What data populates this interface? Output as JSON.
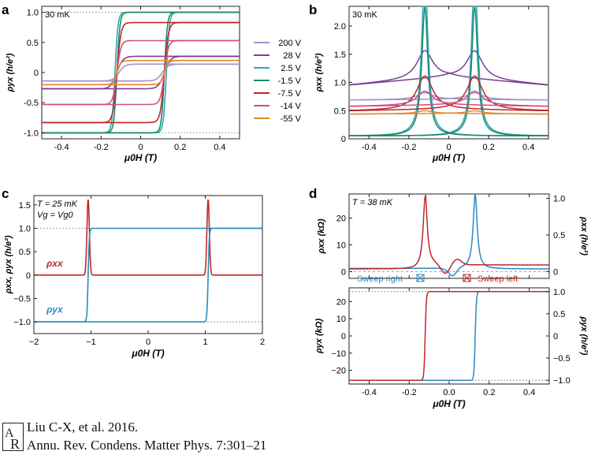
{
  "chart_data": [
    {
      "panel": "a",
      "type": "line",
      "annotation": "30 mK",
      "xlabel": "μ0H (T)",
      "ylabel": "ρyx (h/e²)",
      "xlim": [
        -0.5,
        0.5
      ],
      "ylim": [
        -1.1,
        1.1
      ],
      "xticks": [
        -0.4,
        -0.2,
        0,
        0.2,
        0.4
      ],
      "xtick_labels": [
        "-0.4",
        "-0.2",
        "0",
        "0.2",
        "0.4"
      ],
      "yticks": [
        -1.0,
        -0.5,
        0,
        0.5,
        1.0
      ],
      "ytick_labels": [
        "-1.0",
        "-0.5",
        "0",
        "0.5",
        "1.0"
      ],
      "reference_lines": [
        1.0,
        -1.0
      ],
      "legend_position": "right",
      "series": [
        {
          "name": "200 V",
          "color": "#9e94cc",
          "saturation": 0.14,
          "coercive_field": 0.11,
          "width": 0.03
        },
        {
          "name": "28 V",
          "color": "#7b3f96",
          "saturation": 0.27,
          "coercive_field": 0.12,
          "width": 0.03
        },
        {
          "name": "2.5 V",
          "color": "#2fa7b5",
          "saturation": 1.0,
          "coercive_field": 0.13,
          "width": 0.015
        },
        {
          "name": "-1.5 V",
          "color": "#1a8a6a",
          "saturation": 1.0,
          "coercive_field": 0.12,
          "width": 0.015
        },
        {
          "name": "-7.5 V",
          "color": "#c0282a",
          "saturation": 0.83,
          "coercive_field": 0.12,
          "width": 0.02
        },
        {
          "name": "-14 V",
          "color": "#cf4f86",
          "saturation": 0.53,
          "coercive_field": 0.12,
          "width": 0.02
        },
        {
          "name": "-55 V",
          "color": "#e8872c",
          "saturation": 0.2,
          "coercive_field": 0.12,
          "width": 0.02
        }
      ]
    },
    {
      "panel": "b",
      "type": "line",
      "annotation": "30 mK",
      "xlabel": "μ0H (T)",
      "ylabel": "ρxx (h/e²)",
      "xlim": [
        -0.5,
        0.5
      ],
      "ylim": [
        0,
        2.35
      ],
      "xticks": [
        -0.4,
        -0.2,
        0,
        0.2,
        0.4
      ],
      "xtick_labels": [
        "-0.4",
        "-0.2",
        "0",
        "0.2",
        "0.4"
      ],
      "yticks": [
        0,
        0.5,
        1.0,
        1.5,
        2.0
      ],
      "ytick_labels": [
        "0",
        "0.5",
        "1.0",
        "1.5",
        "2.0"
      ],
      "series": [
        {
          "name": "200 V",
          "color": "#9e94cc",
          "base": 0.7,
          "slope": 0.05,
          "peak": 0.12
        },
        {
          "name": "28 V",
          "color": "#7b3f96",
          "base": 1.1,
          "slope": 0.6,
          "peak": 0.5
        },
        {
          "name": "2.5 V",
          "color": "#2fa7b5",
          "base": 0.05,
          "slope": 0,
          "peak": 3.0
        },
        {
          "name": "-1.5 V",
          "color": "#1a8a6a",
          "base": 0.05,
          "slope": 0,
          "peak": 2.3
        },
        {
          "name": "-7.5 V",
          "color": "#c0282a",
          "base": 0.52,
          "slope": 0.1,
          "peak": 0.6
        },
        {
          "name": "-14 V",
          "color": "#cf4f86",
          "base": 0.6,
          "slope": 0.1,
          "peak": 0.25
        },
        {
          "name": "-55 V",
          "color": "#e8872c",
          "base": 0.45,
          "slope": 0.05,
          "peak": 0.05
        }
      ]
    },
    {
      "panel": "c",
      "type": "line",
      "annotation_line1": "T = 25 mK",
      "annotation_line2": "Vg = Vg0",
      "xlabel": "μ0H (T)",
      "ylabel": "ρxx, ρyx (h/e²)",
      "xlim": [
        -2,
        2
      ],
      "ylim": [
        -1.25,
        1.7
      ],
      "xticks": [
        -2,
        -1,
        0,
        1,
        2
      ],
      "xtick_labels": [
        "−2",
        "−1",
        "0",
        "1",
        "2"
      ],
      "yticks": [
        -1.0,
        -0.5,
        0,
        0.5,
        1.0,
        1.5
      ],
      "ytick_labels": [
        "−1.0",
        "−0.5",
        "0",
        "0.5",
        "1.0",
        "1.5"
      ],
      "reference_lines": [
        1.0,
        -1.0
      ],
      "series": [
        {
          "name": "ρxx",
          "color": "#c0282a",
          "peak_fields": [
            -1.05,
            1.05
          ],
          "peak_height": 1.62
        },
        {
          "name": "ρyx",
          "color": "#2a8ac0",
          "coercive_field": 1.05,
          "saturation": 1.0
        }
      ]
    },
    {
      "panel": "d",
      "type": "line",
      "annotation": "T = 38 mK",
      "xlabel": "μ0H (T)",
      "top": {
        "ylabel_left": "ρxx (kΩ)",
        "ylabel_right": "ρxx (h/e²)",
        "ylim": [
          -2.5,
          29
        ],
        "yticks_left": [
          0,
          10,
          20
        ],
        "ytick_labels_left": [
          "0",
          "10",
          "20"
        ],
        "ytick_labels_right": [
          "0",
          "0.5",
          "1.0"
        ],
        "sweep_right_label": "Sweep right",
        "sweep_left_label": "Sweep left",
        "series": [
          {
            "name": "Sweep right",
            "color": "#2a8ac0",
            "peak_field": 0.13,
            "peak_value": 28
          },
          {
            "name": "Sweep left",
            "color": "#c0282a",
            "peak_field": -0.12,
            "peak_value": 27
          }
        ]
      },
      "bottom": {
        "ylabel_left": "ρyx (kΩ)",
        "ylabel_right": "ρyx (h/e²)",
        "ylim": [
          -28,
          28
        ],
        "yticks_left": [
          -20,
          -10,
          0,
          10,
          20
        ],
        "ytick_labels_left": [
          "−20",
          "−10",
          "0",
          "10",
          "20"
        ],
        "ytick_labels_right": [
          "−1.0",
          "−0.5",
          "0",
          "0.5",
          "1.0"
        ],
        "saturation": 25.8,
        "series": [
          {
            "name": "Sweep right",
            "color": "#2a8ac0",
            "coercive_field": 0.13
          },
          {
            "name": "Sweep left",
            "color": "#c0282a",
            "coercive_field": -0.12
          }
        ]
      },
      "xlim": [
        -0.5,
        0.5
      ],
      "xticks": [
        -0.4,
        -0.2,
        0,
        0.2,
        0.4
      ],
      "xtick_labels": [
        "-0.4",
        "-0.2",
        "0.0",
        "0.2",
        "0.4"
      ]
    }
  ],
  "citation": {
    "line1": "Liu C-X, et al. 2016.",
    "line2": "Annu. Rev. Condens. Matter Phys. 7:301–21"
  }
}
